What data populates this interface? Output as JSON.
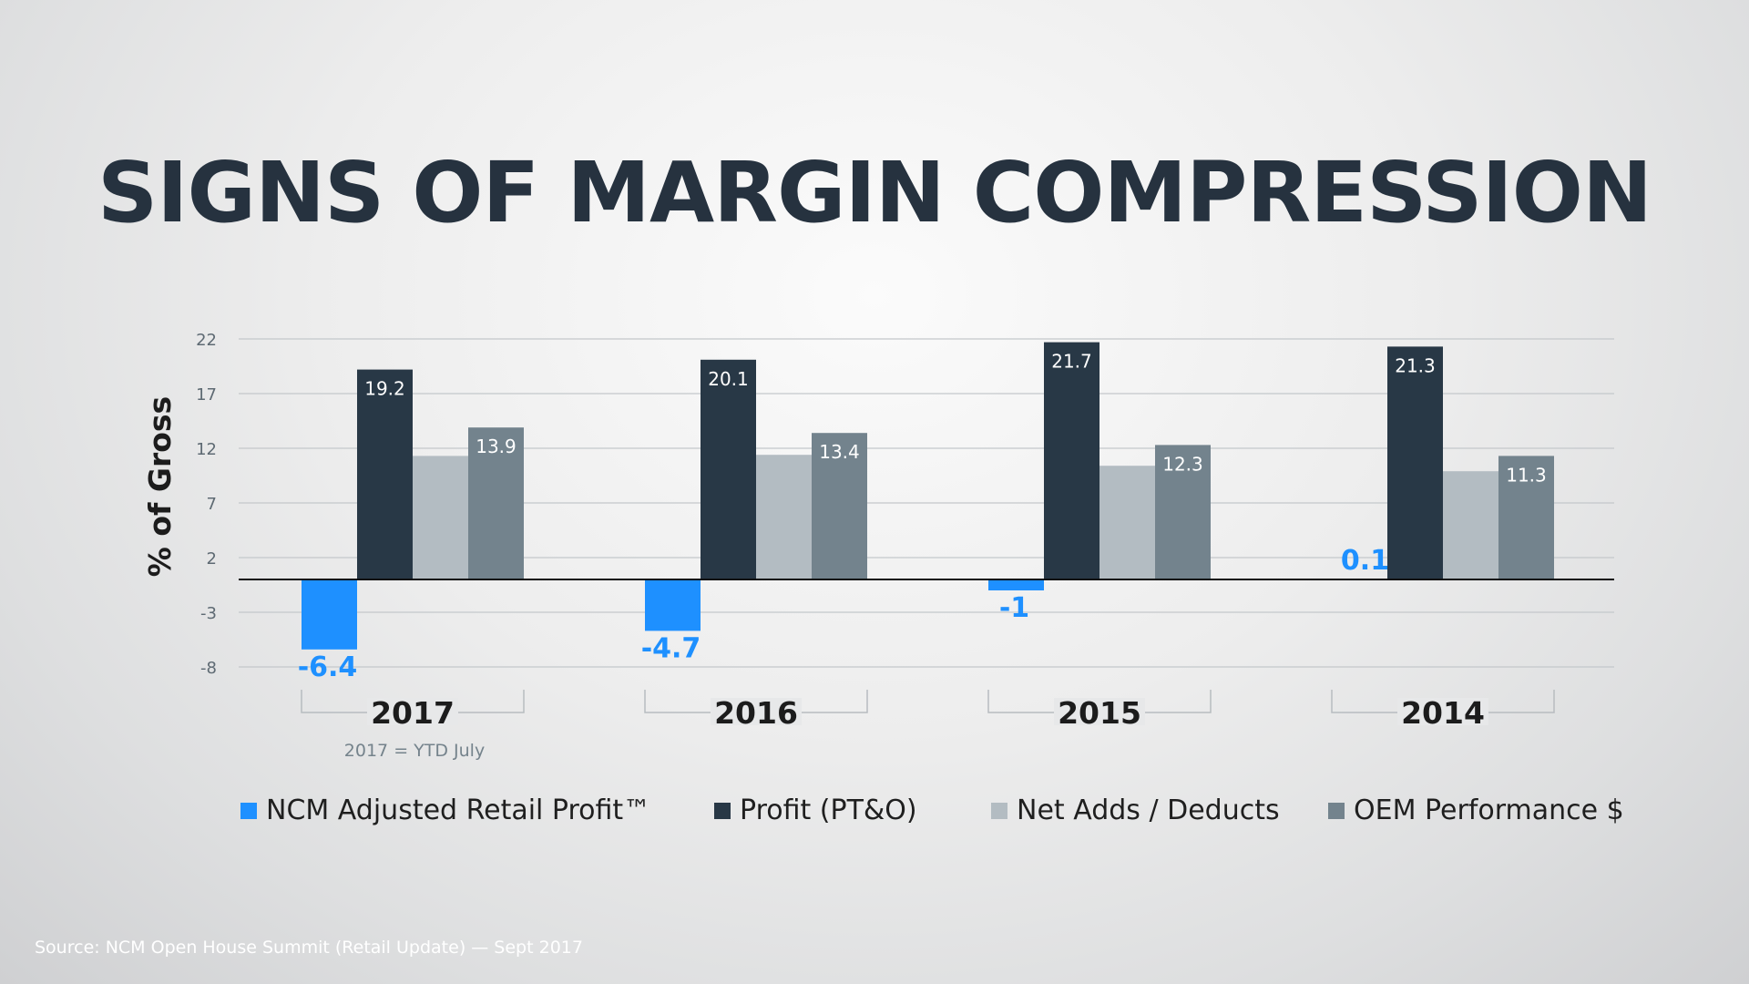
{
  "title": "SIGNS OF MARGIN COMPRESSION",
  "source": "Source: NCM Open House  Summit (Retail Update) — Sept 2017",
  "chart_data": {
    "type": "bar",
    "title": "SIGNS OF MARGIN COMPRESSION",
    "ylabel": "% of Gross",
    "xlabel": "",
    "categories": [
      "2017",
      "2016",
      "2015",
      "2014"
    ],
    "category_note": "2017 = YTD July",
    "yticks": [
      22,
      17,
      12,
      7,
      2,
      -3,
      -8
    ],
    "ylim": [
      -8,
      22
    ],
    "grid": true,
    "legend_position": "bottom",
    "series": [
      {
        "name": "NCM Adjusted Retail Profit™",
        "color": "#1e90ff",
        "values": [
          -6.4,
          -4.7,
          -1,
          0.1
        ],
        "labels": [
          "-6.4",
          "-4.7",
          "-1",
          "0.1"
        ]
      },
      {
        "name": "Profit (PT&O)",
        "color": "#283846",
        "values": [
          19.2,
          20.1,
          21.7,
          21.3
        ],
        "labels": [
          "19.2",
          "20.1",
          "21.7",
          "21.3"
        ]
      },
      {
        "name": "Net Adds / Deducts",
        "color": "#b3bcc2",
        "values": [
          11.3,
          11.4,
          10.4,
          9.9
        ],
        "labels": [
          "",
          "",
          "",
          ""
        ]
      },
      {
        "name": "OEM Performance $",
        "color": "#73838d",
        "values": [
          13.9,
          13.4,
          12.3,
          11.3
        ],
        "labels": [
          "13.9",
          "13.4",
          "12.3",
          "11.3"
        ]
      }
    ]
  }
}
